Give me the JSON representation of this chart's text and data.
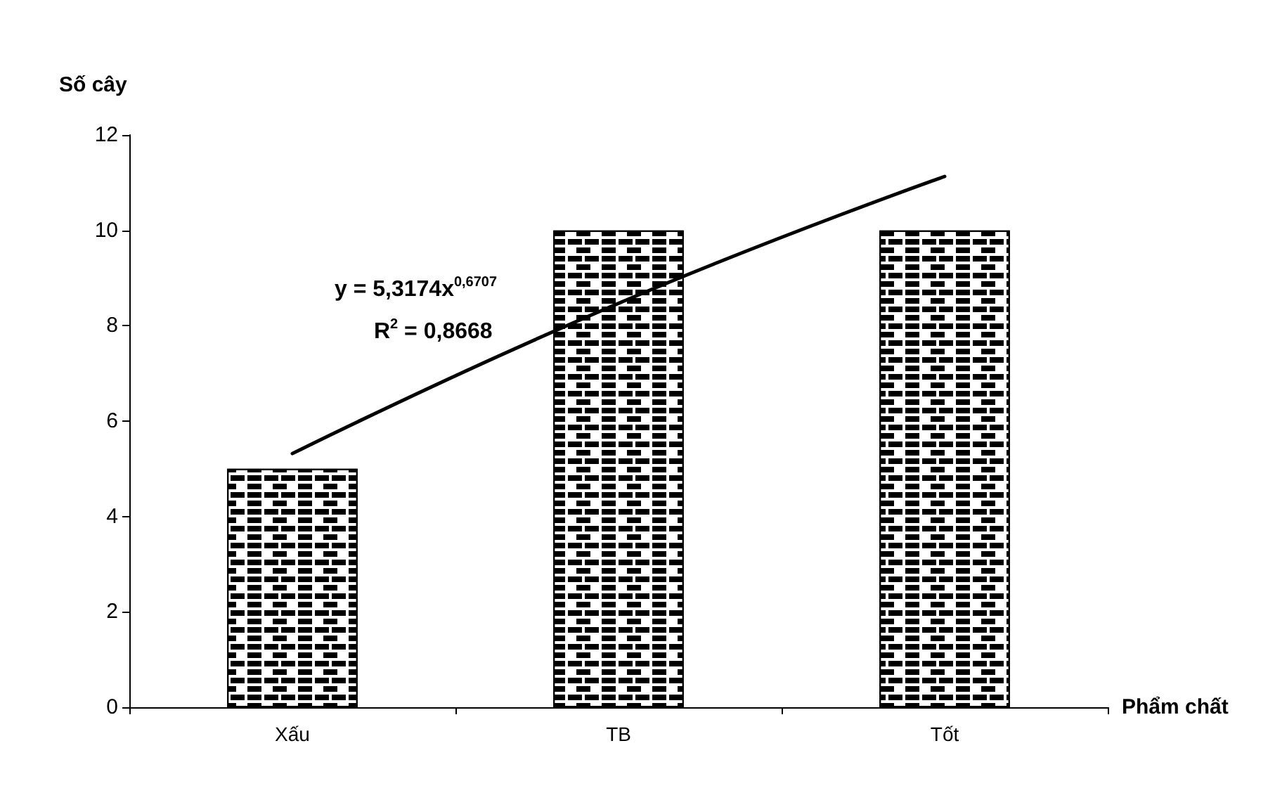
{
  "chart_data": {
    "type": "bar",
    "ylabel": "Số cây",
    "xlabel": "Phẩm chất",
    "categories": [
      "Xấu",
      "TB",
      "Tốt"
    ],
    "series": [
      {
        "color": "#ffffff",
        "values": [
          5,
          10,
          10
        ]
      },
      {
        "type": "line",
        "color": "#000000",
        "x": [
          "Xấu",
          "TB",
          "Tốt"
        ],
        "values": [
          5.32,
          8.47,
          11.13
        ]
      }
    ],
    "annotations": [
      "y = 5,3174x$^{0,6707}$",
      "R$^{2}$ = 0,8668"
    ],
    "ylim": [
      0,
      12
    ],
    "yticks": [
      0,
      2,
      4,
      6,
      8,
      10,
      12
    ],
    "grid": false,
    "marker": "none",
    "line_style": "solid"
  }
}
